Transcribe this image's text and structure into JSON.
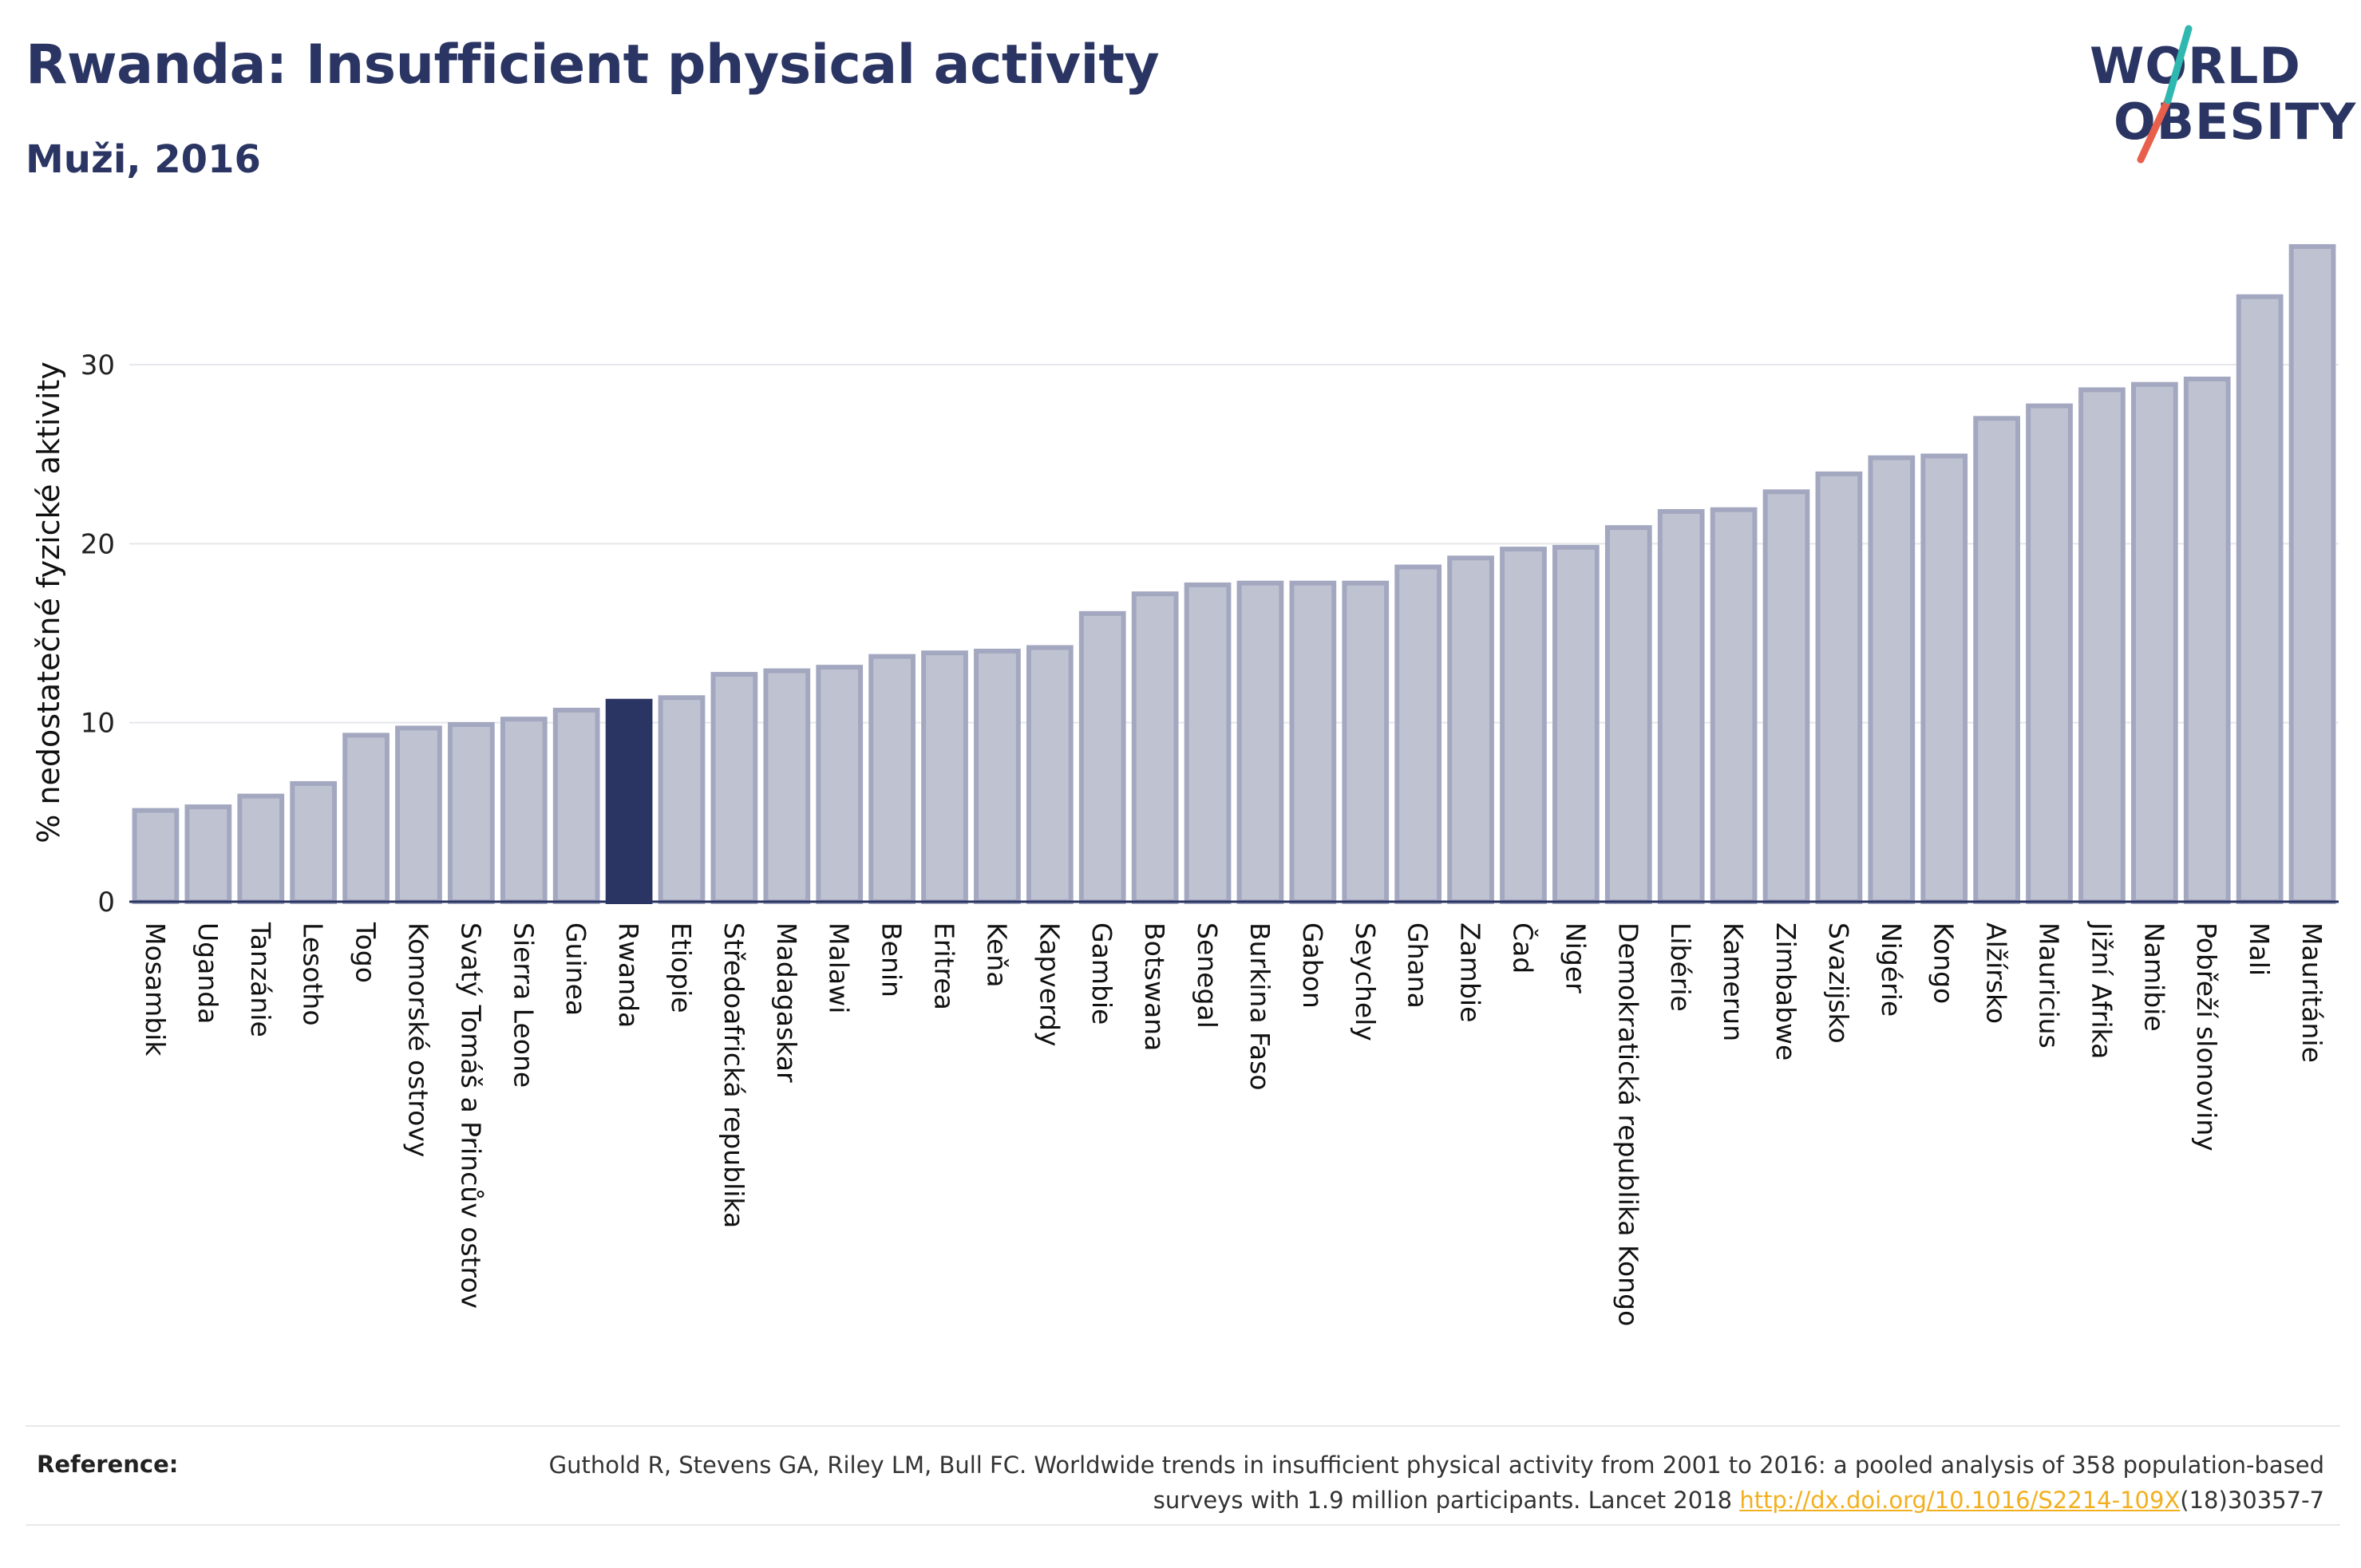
{
  "title": "Rwanda: Insufficient physical activity",
  "subtitle": "Muži, 2016",
  "logo": {
    "line1": "WORLD",
    "line2": "OBESITY"
  },
  "colors": {
    "bar": "#bfc3d1",
    "bar_edge": "#a3a8c0",
    "highlight": "#2b3563",
    "accent_teal": "#2fb8b0",
    "accent_red": "#e8604c",
    "text": "#2b3563"
  },
  "reference": {
    "label": "Reference:",
    "text_before": "Guthold R, Stevens GA, Riley LM, Bull FC. Worldwide trends in insufficient physical activity from 2001 to 2016: a pooled analysis of 358 population-based surveys with 1.9 million participants. Lancet 2018 ",
    "link": "http://dx.doi.org/10.1016/S2214-109X",
    "text_after": "(18)30357-7"
  },
  "chart_data": {
    "type": "bar",
    "ylabel": "% nedostatečné fyzické aktivity",
    "xlabel": "",
    "ylim": [
      0,
      37
    ],
    "yticks": [
      0,
      10,
      20,
      30
    ],
    "grid": true,
    "highlight": "Rwanda",
    "categories": [
      "Mosambik",
      "Uganda",
      "Tanzánie",
      "Lesotho",
      "Togo",
      "Komorské ostrovy",
      "Svatý Tomáš a Princův ostrov",
      "Sierra Leone",
      "Guinea",
      "Rwanda",
      "Etiopie",
      "Středoafrická republika",
      "Madagaskar",
      "Malawi",
      "Benin",
      "Eritrea",
      "Keňa",
      "Kapverdy",
      "Gambie",
      "Botswana",
      "Senegal",
      "Burkina Faso",
      "Gabon",
      "Seychely",
      "Ghana",
      "Zambie",
      "Čad",
      "Niger",
      "Demokratická republika Kongo",
      "Libérie",
      "Kamerun",
      "Zimbabwe",
      "Svazijsko",
      "Nigérie",
      "Kongo",
      "Alžírsko",
      "Mauricius",
      "Jižní Afrika",
      "Namibie",
      "Pobřeží slonoviny",
      "Mali",
      "Mauritánie"
    ],
    "values": [
      5.1,
      5.3,
      5.9,
      6.6,
      9.3,
      9.7,
      9.9,
      10.2,
      10.7,
      11.2,
      11.4,
      12.7,
      12.9,
      13.1,
      13.7,
      13.9,
      14.0,
      14.2,
      16.1,
      17.2,
      17.7,
      17.8,
      17.8,
      17.8,
      18.7,
      19.2,
      19.7,
      19.8,
      20.9,
      21.8,
      21.9,
      22.9,
      23.9,
      24.8,
      24.9,
      27.0,
      27.7,
      28.6,
      28.9,
      29.2,
      33.8,
      36.6
    ]
  }
}
